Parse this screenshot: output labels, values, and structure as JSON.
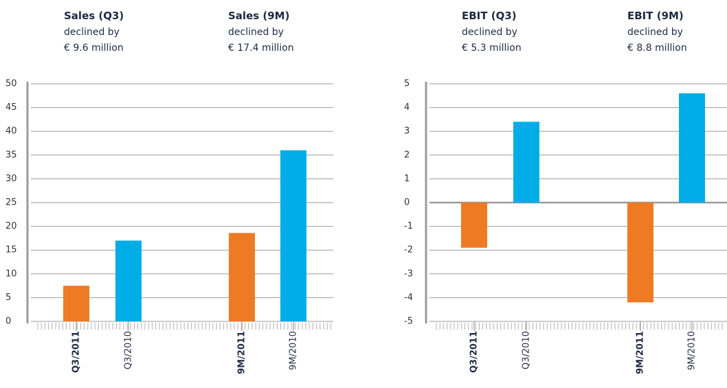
{
  "chart_data": [
    {
      "type": "bar",
      "annotations": [
        {
          "title": "Sales (Q3)",
          "lines": [
            "declined by",
            "€ 9.6 million"
          ]
        },
        {
          "title": "Sales (9M)",
          "lines": [
            "declined by",
            "€ 17.4 million"
          ]
        }
      ],
      "categories": [
        "Q3/2011",
        "Q3/2010",
        "9M/2011",
        "9M/2010"
      ],
      "values": [
        7.5,
        17,
        18.6,
        36
      ],
      "colors": [
        "#ef7a24",
        "#00ade6",
        "#ef7a24",
        "#00ade6"
      ],
      "ylim": [
        0,
        50
      ],
      "yticks": [
        0,
        5,
        10,
        15,
        20,
        25,
        30,
        35,
        40,
        45,
        50
      ],
      "grid": true
    },
    {
      "type": "bar",
      "annotations": [
        {
          "title": "EBIT (Q3)",
          "lines": [
            "declined by",
            "€ 5.3 million"
          ]
        },
        {
          "title": "EBIT (9M)",
          "lines": [
            "declined by",
            "€ 8.8 million"
          ]
        }
      ],
      "categories": [
        "Q3/2011",
        "Q3/2010",
        "9M/2011",
        "9M/2010"
      ],
      "values": [
        -1.9,
        3.4,
        -4.2,
        4.6
      ],
      "colors": [
        "#ef7a24",
        "#00ade6",
        "#ef7a24",
        "#00ade6"
      ],
      "ylim": [
        -5,
        5
      ],
      "yticks": [
        -5,
        -4,
        -3,
        -2,
        -1,
        0,
        1,
        2,
        3,
        4,
        5
      ],
      "grid": true
    }
  ]
}
